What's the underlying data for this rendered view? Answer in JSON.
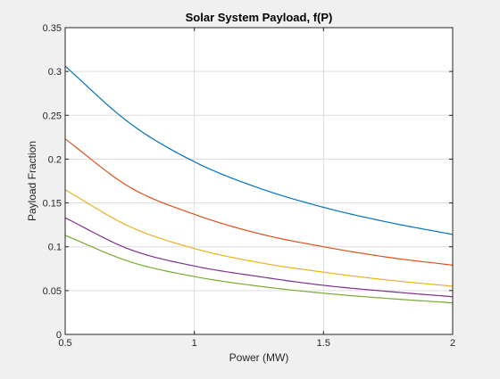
{
  "chart_data": {
    "type": "line",
    "title": "Solar System Payload, f(P)",
    "xlabel": "Power (MW)",
    "ylabel": "Payload Fraction",
    "xlim": [
      0.5,
      2
    ],
    "ylim": [
      0,
      0.35
    ],
    "xticks": [
      0.5,
      1,
      1.5,
      2
    ],
    "xtick_labels": [
      "0.5",
      "1",
      "1.5",
      "2"
    ],
    "yticks": [
      0,
      0.05,
      0.1,
      0.15,
      0.2,
      0.25,
      0.3,
      0.35
    ],
    "ytick_labels": [
      "0",
      "0.05",
      "0.1",
      "0.15",
      "0.2",
      "0.25",
      "0.3",
      "0.35"
    ],
    "grid": true,
    "legend": false,
    "x": [
      0.5,
      0.75,
      1,
      1.25,
      1.5,
      1.75,
      2
    ],
    "series": [
      {
        "color": "#0072bd",
        "values": [
          0.306,
          0.241,
          0.197,
          0.167,
          0.145,
          0.128,
          0.114
        ]
      },
      {
        "color": "#d95319",
        "values": [
          0.223,
          0.168,
          0.137,
          0.115,
          0.1,
          0.088,
          0.079
        ]
      },
      {
        "color": "#edb120",
        "values": [
          0.165,
          0.123,
          0.098,
          0.082,
          0.071,
          0.062,
          0.055
        ]
      },
      {
        "color": "#7e2f8e",
        "values": [
          0.133,
          0.097,
          0.078,
          0.066,
          0.056,
          0.049,
          0.043
        ]
      },
      {
        "color": "#77ac30",
        "values": [
          0.113,
          0.083,
          0.066,
          0.055,
          0.047,
          0.041,
          0.036
        ]
      }
    ]
  }
}
